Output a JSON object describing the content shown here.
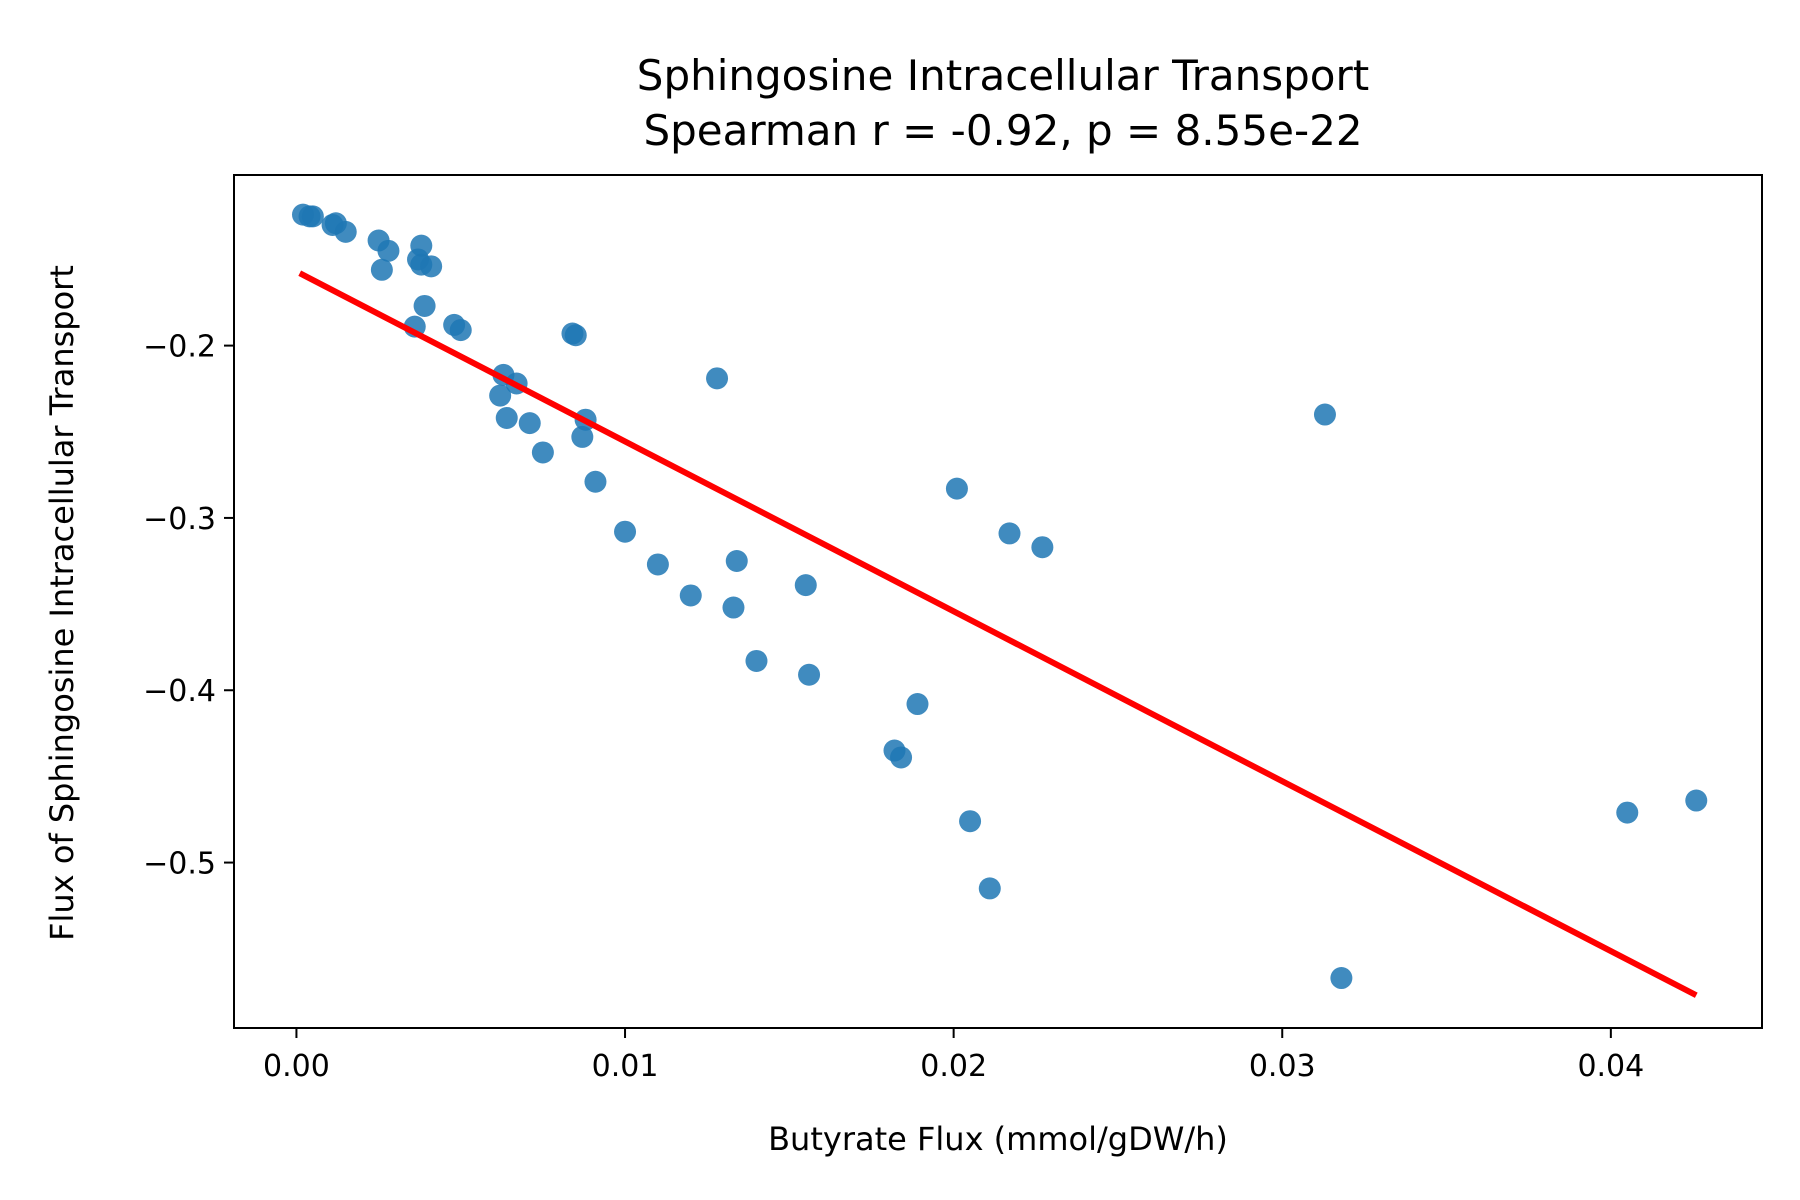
{
  "chart_data": {
    "type": "scatter",
    "title": "Sphingosine Intracellular Transport",
    "subtitle": "Spearman r = -0.92, p = 8.55e-22",
    "xlabel": "Butyrate Flux (mmol/gDW/h)",
    "ylabel": "Flux of Sphingosine Intracellular Transport",
    "xlim": [
      -0.0019,
      0.0446
    ],
    "ylim": [
      -0.596,
      -0.101
    ],
    "xticks": [
      0.0,
      0.01,
      0.02,
      0.03,
      0.04
    ],
    "xtick_labels": [
      "0.00",
      "0.01",
      "0.02",
      "0.03",
      "0.04"
    ],
    "yticks": [
      -0.2,
      -0.3,
      -0.4,
      -0.5
    ],
    "ytick_labels": [
      "−0.2",
      "−0.3",
      "−0.4",
      "−0.5"
    ],
    "grid": false,
    "point_color": "#1f77b4",
    "line_color": "#ff0000",
    "points": [
      {
        "x": 0.0002,
        "y": -0.124
      },
      {
        "x": 0.0004,
        "y": -0.125
      },
      {
        "x": 0.0005,
        "y": -0.125
      },
      {
        "x": 0.0011,
        "y": -0.13
      },
      {
        "x": 0.0012,
        "y": -0.129
      },
      {
        "x": 0.0015,
        "y": -0.134
      },
      {
        "x": 0.0025,
        "y": -0.139
      },
      {
        "x": 0.0028,
        "y": -0.145
      },
      {
        "x": 0.0026,
        "y": -0.156
      },
      {
        "x": 0.0038,
        "y": -0.142
      },
      {
        "x": 0.0037,
        "y": -0.15
      },
      {
        "x": 0.0038,
        "y": -0.153
      },
      {
        "x": 0.0041,
        "y": -0.154
      },
      {
        "x": 0.0039,
        "y": -0.177
      },
      {
        "x": 0.0036,
        "y": -0.189
      },
      {
        "x": 0.0048,
        "y": -0.188
      },
      {
        "x": 0.005,
        "y": -0.191
      },
      {
        "x": 0.0084,
        "y": -0.193
      },
      {
        "x": 0.0085,
        "y": -0.194
      },
      {
        "x": 0.0063,
        "y": -0.217
      },
      {
        "x": 0.0067,
        "y": -0.222
      },
      {
        "x": 0.0062,
        "y": -0.229
      },
      {
        "x": 0.0064,
        "y": -0.242
      },
      {
        "x": 0.0071,
        "y": -0.245
      },
      {
        "x": 0.0088,
        "y": -0.243
      },
      {
        "x": 0.0087,
        "y": -0.253
      },
      {
        "x": 0.0075,
        "y": -0.262
      },
      {
        "x": 0.0091,
        "y": -0.279
      },
      {
        "x": 0.0128,
        "y": -0.219
      },
      {
        "x": 0.01,
        "y": -0.308
      },
      {
        "x": 0.011,
        "y": -0.327
      },
      {
        "x": 0.012,
        "y": -0.345
      },
      {
        "x": 0.0134,
        "y": -0.325
      },
      {
        "x": 0.0133,
        "y": -0.352
      },
      {
        "x": 0.014,
        "y": -0.383
      },
      {
        "x": 0.0155,
        "y": -0.339
      },
      {
        "x": 0.0156,
        "y": -0.391
      },
      {
        "x": 0.0189,
        "y": -0.408
      },
      {
        "x": 0.0182,
        "y": -0.435
      },
      {
        "x": 0.0184,
        "y": -0.439
      },
      {
        "x": 0.0201,
        "y": -0.283
      },
      {
        "x": 0.0217,
        "y": -0.309
      },
      {
        "x": 0.0227,
        "y": -0.317
      },
      {
        "x": 0.0205,
        "y": -0.476
      },
      {
        "x": 0.0211,
        "y": -0.515
      },
      {
        "x": 0.0313,
        "y": -0.24
      },
      {
        "x": 0.0318,
        "y": -0.567
      },
      {
        "x": 0.0405,
        "y": -0.471
      },
      {
        "x": 0.0426,
        "y": -0.464
      }
    ],
    "fit_line": {
      "x": [
        0.0001,
        0.0426
      ],
      "y": [
        -0.158,
        -0.577
      ]
    }
  }
}
